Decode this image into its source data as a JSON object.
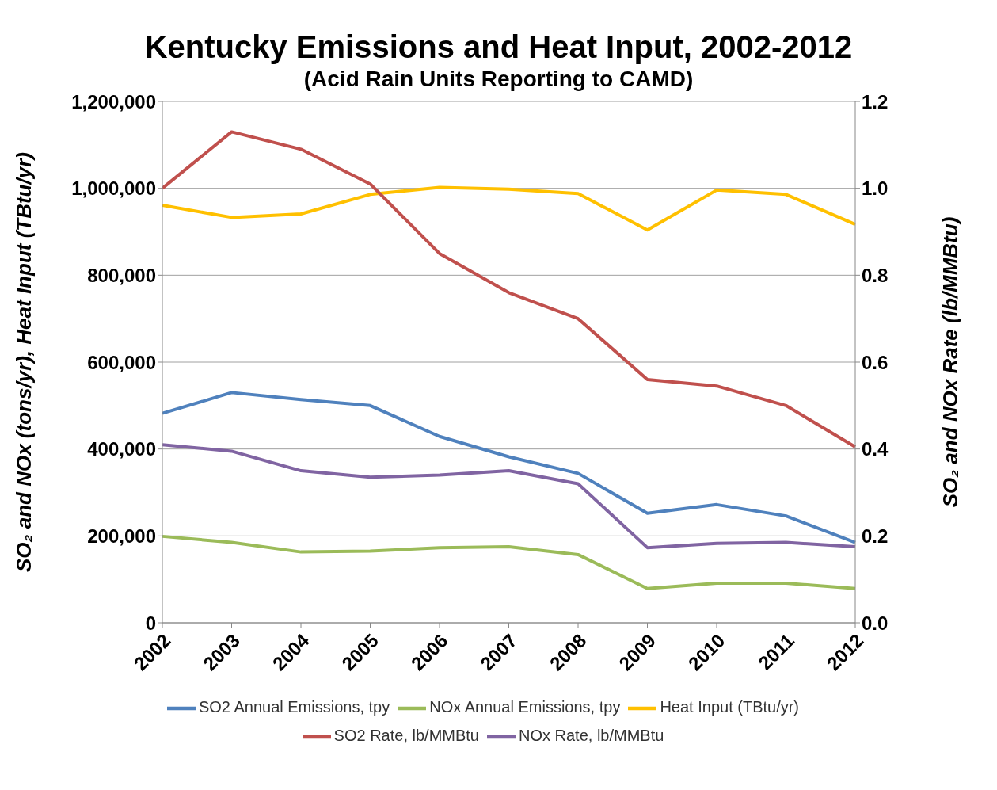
{
  "chart_data": {
    "type": "line",
    "title": "Kentucky Emissions and Heat Input, 2002-2012",
    "subtitle": "(Acid Rain Units Reporting to CAMD)",
    "ylabel": "SO₂ and NOx (tons/yr), Heat Input (TBtu/yr)",
    "y2label": "SO₂ and NOx Rate (lb/MMBtu)",
    "categories": [
      "2002",
      "2003",
      "2004",
      "2005",
      "2006",
      "2007",
      "2008",
      "2009",
      "2010",
      "2011",
      "2012"
    ],
    "series": [
      {
        "name": "SO2 Annual Emissions, tpy",
        "color": "#4f81bd",
        "values": [
          482000,
          530000,
          514000,
          500000,
          429000,
          382000,
          344000,
          252000,
          272000,
          246000,
          185000
        ]
      },
      {
        "name": "NOx Annual Emissions, tpy",
        "color": "#9bbb59",
        "values": [
          199000,
          185000,
          163000,
          165000,
          173000,
          175000,
          157000,
          79000,
          91000,
          91000,
          79000
        ]
      },
      {
        "name": "Heat Input (TBtu/yr)",
        "color": "#ffc000",
        "values": [
          961000,
          933000,
          941000,
          986000,
          1002000,
          998000,
          988000,
          904000,
          996000,
          986000,
          917000
        ]
      },
      {
        "name": "SO2 Rate, lb/MMBtu",
        "color": "#c0504d",
        "axis": "y2",
        "values": [
          1.0,
          1.13,
          1.09,
          1.01,
          0.85,
          0.76,
          0.7,
          0.56,
          0.545,
          0.5,
          0.405
        ]
      },
      {
        "name": "NOx Rate, lb/MMBtu",
        "color": "#8064a2",
        "axis": "y2",
        "values": [
          0.41,
          0.395,
          0.35,
          0.335,
          0.34,
          0.35,
          0.32,
          0.173,
          0.183,
          0.185,
          0.175
        ]
      }
    ],
    "ylim": [
      0,
      1200000
    ],
    "yticks": [
      0,
      {
        "value": 200000,
        "label": "200,000"
      },
      {
        "value": 400000,
        "label": "400,000"
      },
      {
        "value": 600000,
        "label": "600,000"
      },
      {
        "value": 800000,
        "label": "800,000"
      },
      {
        "value": 1000000,
        "label": "1,000,000"
      },
      {
        "value": 1200000,
        "label": "1,200,000"
      }
    ],
    "y2lim": [
      0,
      1.2
    ],
    "y2ticks": [
      {
        "value": 0,
        "label": "0.0"
      },
      {
        "value": 0.2,
        "label": "0.2"
      },
      {
        "value": 0.4,
        "label": "0.4"
      },
      {
        "value": 0.6,
        "label": "0.6"
      },
      {
        "value": 0.8,
        "label": "0.8"
      },
      {
        "value": 1,
        "label": "1.0"
      },
      {
        "value": 1.2,
        "label": "1.2"
      }
    ],
    "grid": "y",
    "legend": "bottom",
    "marker": "none",
    "line_style": "solid"
  }
}
